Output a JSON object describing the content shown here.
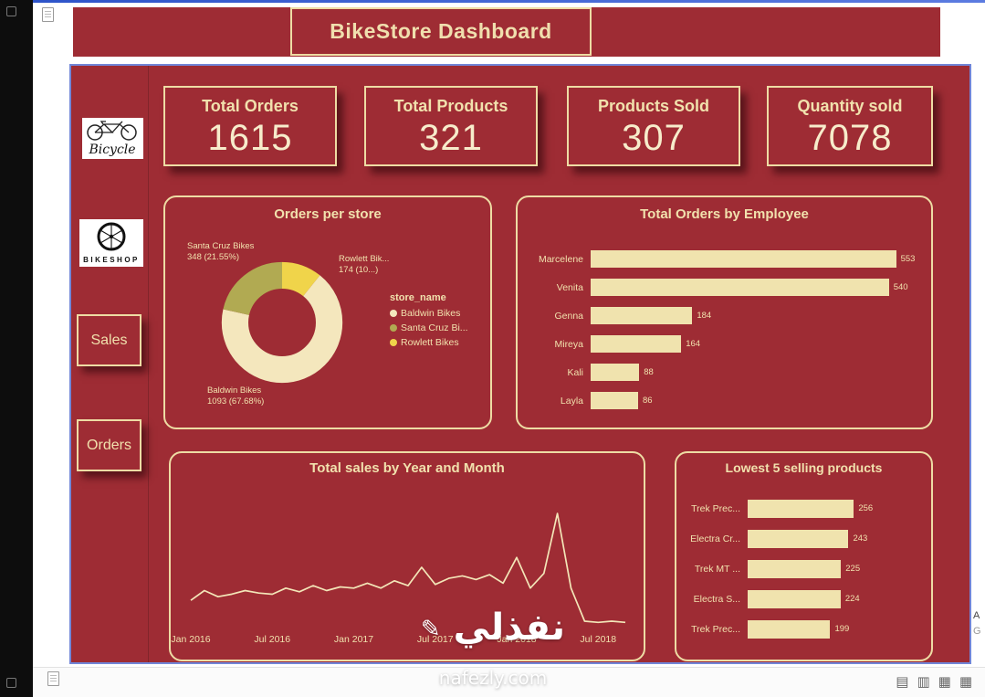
{
  "banner": {
    "title": "BikeStore Dashboard"
  },
  "sidebar": {
    "logo_bicycle_text": "Bicycle",
    "logo_bikeshop_text": "BIKESHOP",
    "buttons": [
      {
        "label": "Sales"
      },
      {
        "label": "Orders"
      }
    ]
  },
  "kpis": [
    {
      "label": "Total Orders",
      "value": "1615"
    },
    {
      "label": "Total Products",
      "value": "321"
    },
    {
      "label": "Products Sold",
      "value": "307"
    },
    {
      "label": "Quantity sold",
      "value": "7078"
    }
  ],
  "colors": {
    "background": "#9e2c34",
    "cream_border": "#eedca4",
    "cream_text": "#f1e1ad",
    "bar_fill": "#f0e3ae",
    "blue_border": "#7186d8",
    "donut_cream": "#f4e7bd",
    "donut_olive": "#b1aa52",
    "donut_yellow": "#f0d44a"
  },
  "chart_data": [
    {
      "type": "pie",
      "title": "Orders per store",
      "legend_title": "store_name",
      "legend_position": "right",
      "slices": [
        {
          "label": "Rowlett Bikes",
          "value": 174,
          "pct": 10.77,
          "color": "#f0d44a"
        },
        {
          "label": "Baldwin Bikes",
          "value": 1093,
          "pct": 67.68,
          "color": "#f4e7bd"
        },
        {
          "label": "Santa Cruz Bikes",
          "value": 348,
          "pct": 21.55,
          "color": "#b1aa52"
        }
      ],
      "legend": [
        {
          "label": "Baldwin Bikes",
          "color": "#f4e7bd"
        },
        {
          "label": "Santa Cruz Bi...",
          "color": "#b1aa52"
        },
        {
          "label": "Rowlett Bikes",
          "color": "#f0d44a"
        }
      ],
      "callouts": {
        "santa": {
          "line1": "Santa Cruz Bikes",
          "line2": "348 (21.55%)"
        },
        "rowlett": {
          "line1": "Rowlett Bik...",
          "line2": "174 (10...)"
        },
        "baldwin": {
          "line1": "Baldwin Bikes",
          "line2": "1093 (67.68%)"
        }
      }
    },
    {
      "type": "bar",
      "orientation": "horizontal",
      "title": "Total Orders by Employee",
      "categories": [
        "Marcelene",
        "Venita",
        "Genna",
        "Mireya",
        "Kali",
        "Layla"
      ],
      "values": [
        553,
        540,
        184,
        164,
        88,
        86
      ],
      "xlim": [
        0,
        600
      ],
      "grid": false
    },
    {
      "type": "line",
      "title": "Total sales by Year and Month",
      "x_ticks": [
        "Jan 2016",
        "Jul 2016",
        "Jan 2017",
        "Jul 2017",
        "Jan 2018",
        "Jul 2018"
      ],
      "tick_indices": [
        0,
        6,
        12,
        18,
        24,
        30
      ],
      "values": [
        20,
        28,
        23,
        25,
        28,
        26,
        25,
        30,
        27,
        32,
        28,
        31,
        30,
        34,
        30,
        36,
        32,
        47,
        33,
        38,
        40,
        37,
        41,
        34,
        55,
        30,
        42,
        91,
        30,
        3,
        2,
        3,
        2
      ],
      "ylim": [
        0,
        100
      ],
      "grid": false
    },
    {
      "type": "bar",
      "orientation": "horizontal",
      "title": "Lowest 5 selling products",
      "categories": [
        "Trek Prec...",
        "Electra Cr...",
        "Trek MT ...",
        "Electra S...",
        "Trek Prec..."
      ],
      "values": [
        256,
        243,
        225,
        224,
        199
      ],
      "xlim": [
        0,
        330
      ],
      "grid": false
    }
  ],
  "watermark": {
    "arabic": "نفذلي",
    "pen": "✎",
    "domain": "nafezly.com"
  },
  "status_bar": {
    "icons": [
      {
        "name": "notes-view-icon",
        "glyph": "▤"
      },
      {
        "name": "reading-view-icon",
        "glyph": "▥"
      },
      {
        "name": "grid-view-icon",
        "glyph": "▦"
      },
      {
        "name": "table-view-icon",
        "glyph": "▦"
      }
    ]
  },
  "edge_labels": {
    "line1": "A",
    "line2": "G"
  }
}
